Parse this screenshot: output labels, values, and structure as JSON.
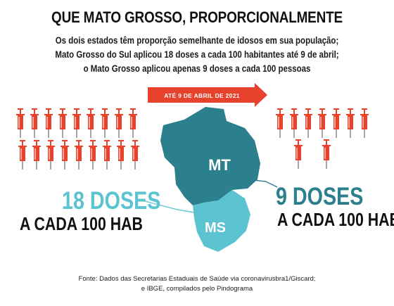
{
  "header": {
    "title": "QUE MATO GROSSO, PROPORCIONALMENTE",
    "subtitle_lines": [
      "Os dois estados têm proporção semelhante de idosos em sua população;",
      "Mato Grosso do Sul aplicou 18 doses a cada 100 habitantes até 9 de abril;",
      "o Mato Grosso aplicou apenas 9 doses a cada 100 pessoas"
    ]
  },
  "arrow": {
    "label": "ATÉ 9 DE ABRIL DE 2021"
  },
  "chart_data": {
    "type": "pictogram",
    "unit_label": "A CADA 100 HAB",
    "series": [
      {
        "name": "MS",
        "value": 18,
        "value_label": "18 DOSES",
        "syringe_icons": 18,
        "color": "#5cc3d0"
      },
      {
        "name": "MT",
        "value": 9,
        "value_label": "9 DOSES",
        "syringe_icons": 9,
        "color": "#2c7f8c"
      }
    ]
  },
  "colors": {
    "mt": "#2c7f8c",
    "ms": "#5cc3d0",
    "arrow": "#e8412c",
    "syringe": "#e8412c",
    "text": "#111111"
  },
  "icons": {
    "syringe": "syringe-icon"
  },
  "footer": {
    "source_lines": [
      "Fonte: Dados das Secretarias Estaduais de Saúde via coronavirusbra1/Giscard;",
      "e IBGE, compilados pelo Pindograma"
    ]
  }
}
